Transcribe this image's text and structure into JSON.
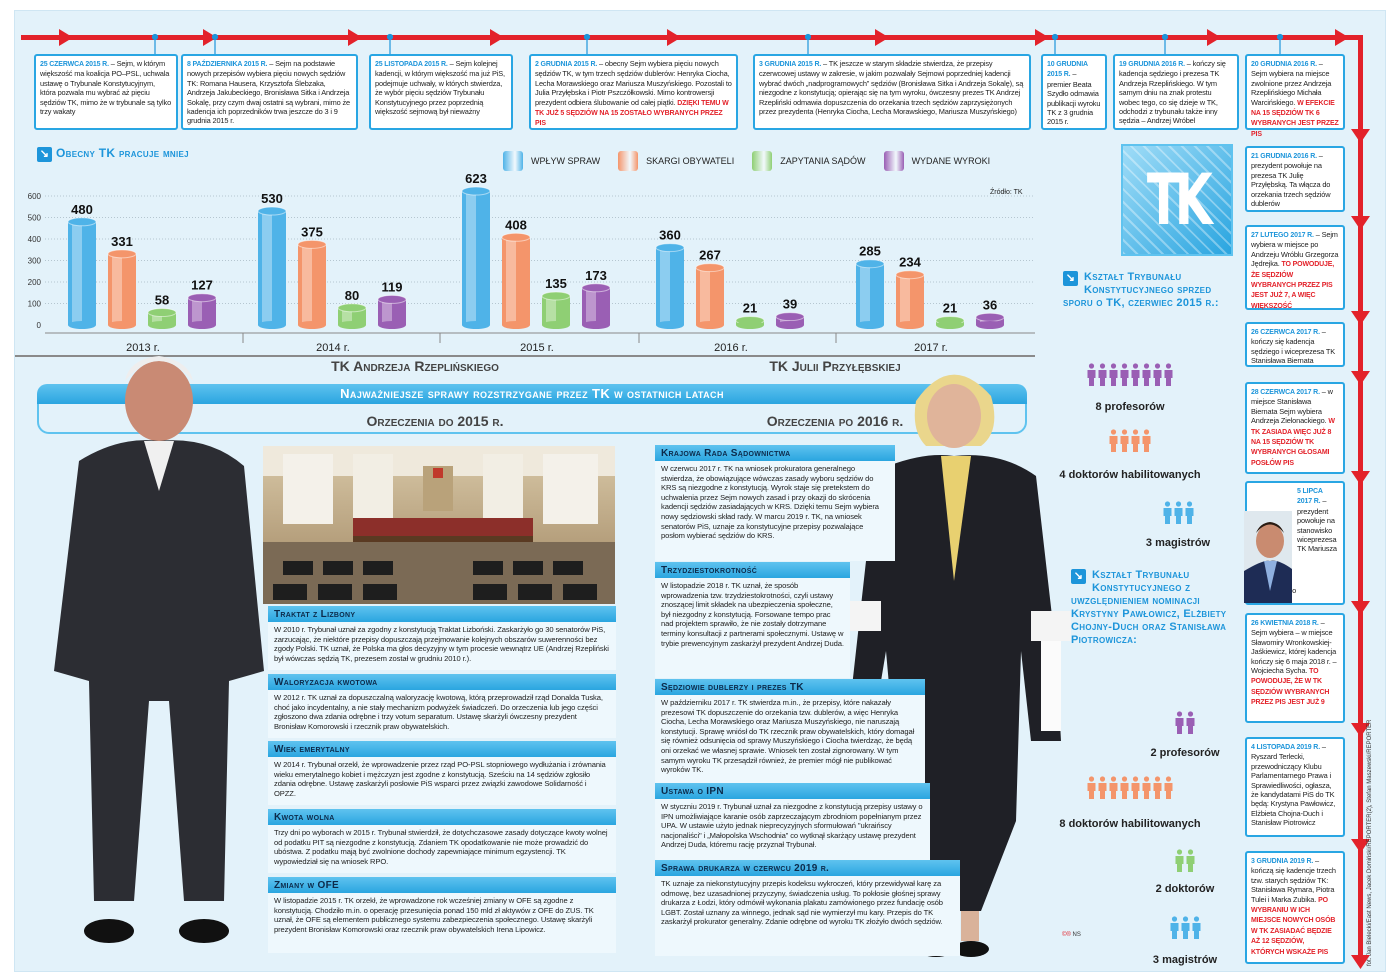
{
  "timeline": [
    {
      "date": "25 czerwca 2015 r.",
      "text": " – Sejm, w którym większość ma koalicja PO–PSL, uchwala ustawę o Trybunale Konstytucyjnym, która pozwala mu wybrać aż pięciu sędziów TK, mimo że w trybunale są tylko trzy wakaty",
      "highlight": ""
    },
    {
      "date": "8 października 2015 r.",
      "text": " – Sejm na podstawie nowych przepisów wybiera pięciu nowych sędziów TK: Romana Hausera, Krzysztofa Ślebzaka, Andrzeja Jakubeckiego, Bronisława Sitka i Andrzeja Sokalę, przy czym dwaj ostatni są wybrani, mimo że kadencja ich poprzedników trwa jeszcze do 3 i 9 grudnia 2015 r.",
      "highlight": ""
    },
    {
      "date": "25 listopada 2015 r.",
      "text": " – Sejm kolejnej kadencji, w którym większość ma już PiS, podejmuje uchwały, w których stwierdza, że wybór pięciu sędziów Trybunału Konstytucyjnego przez poprzednią większość sejmową był nieważny",
      "highlight": ""
    },
    {
      "date": "2 grudnia 2015 r.",
      "text": " – obecny Sejm wybiera pięciu nowych sędziów TK, w tym trzech sędziów dublerów: Henryka Ciocha, Lecha Morawskiego oraz Mariusza Muszyńskiego. Pozostali to Julia Przyłębska i Piotr Pszczółkowski. Mimo kontrowersji prezydent odbiera ślubowanie od całej piątki. ",
      "highlight": "Dzięki temu w TK już 5 sędziów na 15 zostało wybranych przez PiS"
    },
    {
      "date": "3 grudnia 2015 r.",
      "text": " – TK jeszcze w starym składzie stwierdza, że przepisy czerwcowej ustawy w zakresie, w jakim pozwalały Sejmowi poprzedniej kadencji wybrać dwóch „nadprogramowych” sędziów (Bronisława Sitka i Andrzeja Sokalę), są niezgodne z konstytucją; opierając się na tym wyroku, ówczesny prezes TK Andrzej Rzepliński odmawia dopuszczenia do orzekania trzech sędziów zaprzysiężonych przez prezydenta (Henryka Ciocha, Lecha Morawskiego, Mariusza Muszyńskiego)",
      "highlight": ""
    },
    {
      "date": "10 grudnia 2015 r.",
      "text": " – premier Beata Szydło odmawia publikacji wyroku TK z 3 grudnia 2015 r.",
      "highlight": ""
    },
    {
      "date": "19 grudnia 2016 r.",
      "text": " – kończy się kadencja sędziego i prezesa TK Andrzeja Rzeplińskiego. W tym samym dniu na znak protestu wobec tego, co się dzieje w TK, odchodzi z trybunału także inny sędzia – Andrzej Wróbel",
      "highlight": ""
    },
    {
      "date": "20 grudnia 2016 r.",
      "text": " – Sejm wybiera na miejsce zwolnione przez Andrzeja Rzeplińskiego Michała Warcińskiego. ",
      "highlight": "W efekcie na 15 sędziów TK 6 wybranych jest przez PiS"
    },
    {
      "date": "21 grudnia 2016 r.",
      "text": " – prezydent powołuje na prezesa TK Julię Przyłębską. Ta włącza do orzekania trzech sędziów dublerów",
      "highlight": ""
    },
    {
      "date": "27 lutego 2017 r.",
      "text": " – Sejm wybiera w miejsce po Andrzeju Wróblu Grzegorza Jędrejka. ",
      "highlight": "To powoduje, że sędziów wybranych przez PiS jest już 7, a więc większość"
    },
    {
      "date": "26 czerwca 2017 r.",
      "text": " – kończy się kadencja sędziego i wiceprezesa TK Stanisława Biernata",
      "highlight": ""
    },
    {
      "date": "28 czerwca 2017 r.",
      "text": " – w miejsce Stanisława Biernata Sejm wybiera Andrzeja Zielonackiego. ",
      "highlight": "W TK zasiada więc już 8 na 15 sędziów TK wybranych głosami posłów PiS"
    },
    {
      "date": "5 lipca 2017 r.",
      "text": " – prezydent powołuje na stanowisko wiceprezesa TK Mariusza Muszyńskiego",
      "highlight": ""
    },
    {
      "date": "26 kwietnia 2018 r.",
      "text": " – Sejm wybiera – w miejsce Sławomiry Wronkowskiej-Jaśkiewicz, której kadencja kończy się 6 maja 2018 r. – Wojciecha Sycha. ",
      "highlight": "To powoduje, że w TK sędziów wybranych przez PiS jest już 9"
    },
    {
      "date": "4 listopada 2019 r.",
      "text": " – Ryszard Terlecki, przewodniczący Klubu Parlamentarnego Prawa i Sprawiedliwości, ogłasza, że kandydatami PiS do TK będą: Krystyna Pawłowicz, Elżbieta Chojna-Duch i Stanisław Piotrowicz",
      "highlight": ""
    },
    {
      "date": "3 grudnia 2019 r.",
      "text": " – kończą się kadencje trzech tzw. starych sędziów TK: Stanisława Rymara, Piotra Tulei i Marka Zubika. ",
      "highlight": "Po wybraniu w ich miejsce nowych osób w TK zasiadać będzie aż 12 sędziów, których wskaże PiS"
    }
  ],
  "chart_data": {
    "type": "bar",
    "title": "Obecny TK pracuje mniej",
    "source": "Źródło: TK",
    "categories": [
      "2013 r.",
      "2014 r.",
      "2015 r.",
      "2016 r.",
      "2017 r."
    ],
    "series": [
      {
        "name": "Wpływ spraw",
        "color": "#4fb3e8",
        "values": [
          480,
          530,
          623,
          360,
          285
        ]
      },
      {
        "name": "Skargi obywateli",
        "color": "#f4956b",
        "values": [
          331,
          375,
          408,
          267,
          234
        ]
      },
      {
        "name": "Zapytania sądów",
        "color": "#8fcf74",
        "values": [
          58,
          80,
          135,
          21,
          21
        ]
      },
      {
        "name": "Wydane wyroki",
        "color": "#9a5fb4",
        "values": [
          127,
          119,
          173,
          39,
          36
        ]
      }
    ],
    "yticks": [
      0,
      100,
      200,
      300,
      400,
      500,
      600
    ],
    "ylim": [
      0,
      600
    ],
    "grid": true,
    "legend": "top-right"
  },
  "eras": {
    "left": "TK Andrzeja Rzeplińskiego",
    "right": "TK Julii Przyłębskiej"
  },
  "banner": "Najważniejsze sprawy rozstrzygane przez TK w ostatnich latach",
  "rulings": {
    "left_title": "Orzeczenia do 2015 r.",
    "right_title": "Orzeczenia po 2016 r."
  },
  "cases_left": [
    {
      "title": "Traktat z Lizbony",
      "text": "W 2010 r. Trybunał uznał za zgodny z konstytucją Traktat Lizboński. Zaskarżyło go 30 senatorów PiS, zarzucając, że niektóre przepisy dopuszczają przejmowanie kolejnych obszarów suwerenności bez zgody Polski. TK uznał, że Polska ma głos decyzyjny w tym procesie wewnątrz UE (Andrzej Rzepliński był wówczas sędzią TK, prezesem został w grudniu 2010 r.)."
    },
    {
      "title": "Waloryzacja kwotowa",
      "text": "W 2012 r. TK uznał za dopuszczalną waloryzację kwotową, którą przeprowadził rząd Donalda Tuska, choć jako incydentalny, a nie stały mechanizm podwyżek świadczeń. Do orzeczenia lub jego części zgłoszono dwa zdania odrębne i trzy votum separatum. Ustawę skarżyli ówczesny prezydent Bronisław Komorowski i rzecznik praw obywatelskich."
    },
    {
      "title": "Wiek emerytalny",
      "text": "W 2014 r. Trybunał orzekł, że wprowadzenie przez rząd PO-PSL stopniowego wydłużania i zrównania wieku emerytalnego kobiet i mężczyzn jest zgodne z konstytucją. Sześciu na 14 sędziów zgłosiło zdania odrębne. Ustawę zaskarżyli posłowie PiS wsparci przez związki zawodowe Solidarność i OPZZ."
    },
    {
      "title": "Kwota wolna",
      "text": "Trzy dni po wyborach w 2015 r. Trybunał stwierdził, że dotychczasowe zasady dotyczące kwoty wolnej od podatku PIT są niezgodne z konstytucją. Zdaniem TK opodatkowanie nie może prowadzić do ubóstwa. Z podatku mają być zwolnione dochody zapewniające minimum egzystencji. TK wypowiedział się na wniosek RPO."
    },
    {
      "title": "Zmiany w OFE",
      "text": "W listopadzie 2015 r. TK orzekł, że wprowadzone rok wcześniej zmiany w OFE są zgodne z konstytucją. Chodziło m.in. o operację przesunięcia ponad 150 mld zł aktywów z OFE do ZUS. TK uznał, że OFE są elementem publicznego systemu zabezpieczenia społecznego. Ustawę skarżyli prezydent Bronisław Komorowski oraz rzecznik praw obywatelskich Irena Lipowicz."
    }
  ],
  "cases_right": [
    {
      "title": "Krajowa Rada Sądownictwa",
      "text": "W czerwcu 2017 r. TK na wniosek prokuratora generalnego stwierdza, że obowiązujące wówczas zasady wyboru sędziów do KRS są niezgodne z konstytucją. Wyrok staje się pretekstem do uchwalenia przez Sejm nowych zasad i przy okazji do skrócenia kadencji sędziów zasiadających w KRS. Dzięki temu Sejm wybiera nowy sędziowski skład rady. W marcu 2019 r. TK, na wniosek senatorów PiS, uznaje za konstytucyjne przepisy pozwalające posłom wybierać sędziów do KRS."
    },
    {
      "title": "Trzydziestokrotność",
      "text": "W listopadzie 2018 r. TK uznał, że sposób wprowadzenia tzw. trzydziestokrotności, czyli ustawy znoszącej limit składek na ubezpieczenia społeczne, był niezgodny z konstytucją. Forsowane tempo prac nad projektem sprawiło, że nie zostały dotrzymane terminy konsultacji z partnerami społecznymi. Ustawę w trybie prewencyjnym zaskarżył prezydent Andrzej Duda."
    },
    {
      "title": "Sędziowie dublerzy i prezes TK",
      "text": "W październiku 2017 r. TK stwierdza m.in., że przepisy, które nakazały prezesowi TK dopuszczenie do orzekania tzw. dublerów, a więc Henryka Ciocha, Lecha Morawskiego oraz Mariusza Muszyńskiego, nie naruszają konstytucji. Sprawę wniósł do TK rzecznik praw obywatelskich, który domagał się również odsunięcia od sprawy Muszyńskiego i Ciocha twierdząc, że będą oni orzekać we własnej sprawie. Wniosek ten został zignorowany. W tym samym wyroku TK przesądził również, że premier mógł nie publikować wyroków TK."
    },
    {
      "title": "Ustawa o IPN",
      "text": "W styczniu 2019 r. Trybunał uznał za niezgodne z konstytucją przepisy ustawy o IPN umożliwiające karanie osób zaprzeczającym zbrodniom popełnianym przez UPA. W ustawie użyto jednak nieprecyzyjnych sformułowań \"ukraińscy nacjonaliści\" i „Małopolska Wschodnia” co wytknął skarżący ustawę prezydent Andrzej Duda, któremu rację przyznał Trybunał."
    },
    {
      "title": "Sprawa drukarza w czerwcu 2019 r.",
      "text": "TK uznaje za niekonstytucyjny przepis kodeksu wykroczeń, który przewidywał karę za odmowę, bez uzasadnionej przyczyny, świadczenia usług. To pokłosie głośnej sprawy drukarza z Łodzi, który odmówił wykonania plakatu zamówionego przez fundację osób LGBT. Został uznany za winnego, jednak sąd nie wymierzył mu kary. Przepis do TK zaskarżył prokurator generalny. Zdanie odrębne od wyroku TK złożyło dwóch sędziów."
    }
  ],
  "logo": "TK",
  "composition_before": {
    "title": "Kształt Trybunału Konstytucyjnego sprzed sporu o TK, czerwiec 2015 r.:",
    "groups": [
      {
        "label": "8 profesorów",
        "count": 8,
        "color": "#9a5fb4"
      },
      {
        "label": "4 doktorów habilitowanych",
        "count": 4,
        "color": "#f4956b"
      },
      {
        "label": "3 magistrów",
        "count": 3,
        "color": "#4fb3e8"
      }
    ]
  },
  "composition_after": {
    "title": "Kształt Trybunału Konstytucyjnego z uwzględnieniem nominacji Krystyny Pawłowicz, Elżbiety Chojny-Duch oraz Stanisława Piotrowicza:",
    "groups": [
      {
        "label": "2 profesorów",
        "count": 2,
        "color": "#9a5fb4"
      },
      {
        "label": "8 doktorów habilitowanych",
        "count": 8,
        "color": "#f4956b"
      },
      {
        "label": "2 doktorów",
        "count": 2,
        "color": "#8fcf74"
      },
      {
        "label": "3 magistrów",
        "count": 3,
        "color": "#4fb3e8"
      }
    ]
  },
  "credit": "fot. Jan Bielecki/East News, Jacek Domiński/REPORTER(2), Stefan Maszewski/REPORTER",
  "signature": "NS",
  "colors": {
    "accent": "#1d95da",
    "timeline": "#e3222a",
    "background": "#e3f2fa"
  }
}
